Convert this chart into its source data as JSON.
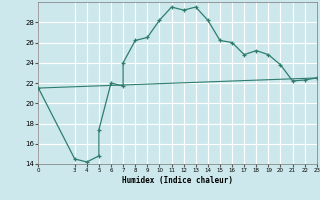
{
  "xlabel": "Humidex (Indice chaleur)",
  "bg_color": "#cde8ec",
  "grid_color": "#ffffff",
  "line_color": "#2e7d6e",
  "curve_x": [
    0,
    3,
    4,
    5,
    5,
    6,
    7,
    7,
    8,
    9,
    10,
    11,
    12,
    13,
    14,
    15,
    16,
    17,
    18,
    19,
    20,
    21,
    22,
    23
  ],
  "curve_y": [
    21.5,
    14.5,
    14.2,
    14.8,
    17.4,
    22.0,
    21.7,
    24.0,
    26.2,
    26.5,
    28.2,
    29.5,
    29.2,
    29.5,
    28.2,
    26.2,
    26.0,
    24.8,
    25.2,
    24.8,
    23.8,
    22.2,
    22.3,
    22.5
  ],
  "line2_x": [
    0,
    22,
    23
  ],
  "line2_y": [
    21.5,
    22.0,
    22.5
  ],
  "xlim": [
    0,
    23
  ],
  "ylim": [
    14,
    30
  ],
  "yticks": [
    14,
    16,
    18,
    20,
    22,
    24,
    26,
    28
  ],
  "xticks": [
    0,
    3,
    4,
    5,
    6,
    7,
    8,
    9,
    10,
    11,
    12,
    13,
    14,
    15,
    16,
    17,
    18,
    19,
    20,
    21,
    22,
    23
  ]
}
